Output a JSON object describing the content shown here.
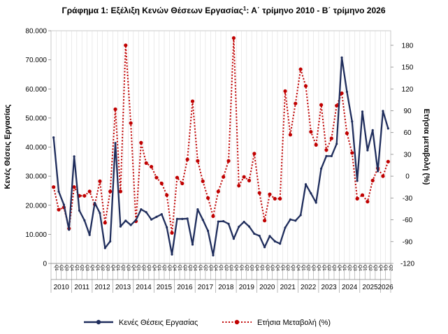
{
  "chart_data": {
    "type": "line",
    "title": "Γράφημα 1: Εξέλιξη Κενών Θέσεων Εργασίας",
    "title_sup": "1",
    "title_rest": ": Α΄ τρίμηνο 2010 - Β΄ τρίμηνο 2026",
    "ylabel": "Κενές Θέσεις Εργασίας",
    "y2label": "Ετήσια μεταβολή (%)",
    "ylim": [
      0,
      80000
    ],
    "y2lim": [
      -120,
      200
    ],
    "yticks": [
      "0",
      "10.000",
      "20.000",
      "30.000",
      "40.000",
      "50.000",
      "60.000",
      "70.000",
      "80.000"
    ],
    "y2ticks": [
      "-120",
      "-90",
      "-60",
      "-30",
      "0",
      "30",
      "60",
      "90",
      "120",
      "150",
      "180"
    ],
    "quarter_labels": [
      "Q1",
      "Q2",
      "Q3",
      "Q4"
    ],
    "years": [
      "2010",
      "2011",
      "2012",
      "2013",
      "2014",
      "2015",
      "2016",
      "2017",
      "2018",
      "2019",
      "2020",
      "2021",
      "2022",
      "2023",
      "2024",
      "2025",
      "2026"
    ],
    "grid": "vertical",
    "legend_position": "bottom",
    "series": [
      {
        "name": "Κενές Θέσεις Εργασίας",
        "axis": "left",
        "color": "#1f2d5c",
        "style": "solid",
        "values": [
          43300,
          24700,
          20200,
          11600,
          36800,
          18200,
          14800,
          9800,
          20800,
          17300,
          5300,
          7600,
          41400,
          12700,
          14700,
          13200,
          14900,
          18600,
          17600,
          15100,
          16000,
          16900,
          12400,
          3100,
          15300,
          15300,
          15400,
          6500,
          18600,
          15000,
          11200,
          2800,
          14400,
          14500,
          13600,
          8500,
          12600,
          14300,
          12700,
          10200,
          9500,
          5600,
          9400,
          7600,
          6800,
          12300,
          15100,
          14700,
          16600,
          27200,
          24100,
          20900,
          32600,
          36900,
          36900,
          41100,
          70800,
          59000,
          48800,
          28400,
          52200,
          38900,
          45800,
          31700,
          52400,
          46400
        ]
      },
      {
        "name": "Ετήσια Μεταβολή (%)",
        "axis": "right",
        "color": "#c00000",
        "style": "dotted",
        "values": [
          -15,
          -46,
          -43,
          -72,
          -15,
          -27,
          -27,
          -21,
          -39,
          -7,
          -64,
          -21,
          92,
          -21,
          180,
          73,
          -62,
          46,
          18,
          13,
          -2,
          -10,
          -26,
          -78,
          -2,
          -10,
          23,
          103,
          21,
          -7,
          -30,
          -55,
          -21,
          -1,
          21,
          190,
          -13,
          -1,
          -6,
          31,
          -23,
          -61,
          -25,
          -31,
          -31,
          117,
          57,
          100,
          147,
          124,
          61,
          43,
          98,
          36,
          52,
          97,
          114,
          59,
          32,
          -31,
          -26,
          -35,
          -6,
          11,
          0,
          20
        ]
      }
    ]
  }
}
